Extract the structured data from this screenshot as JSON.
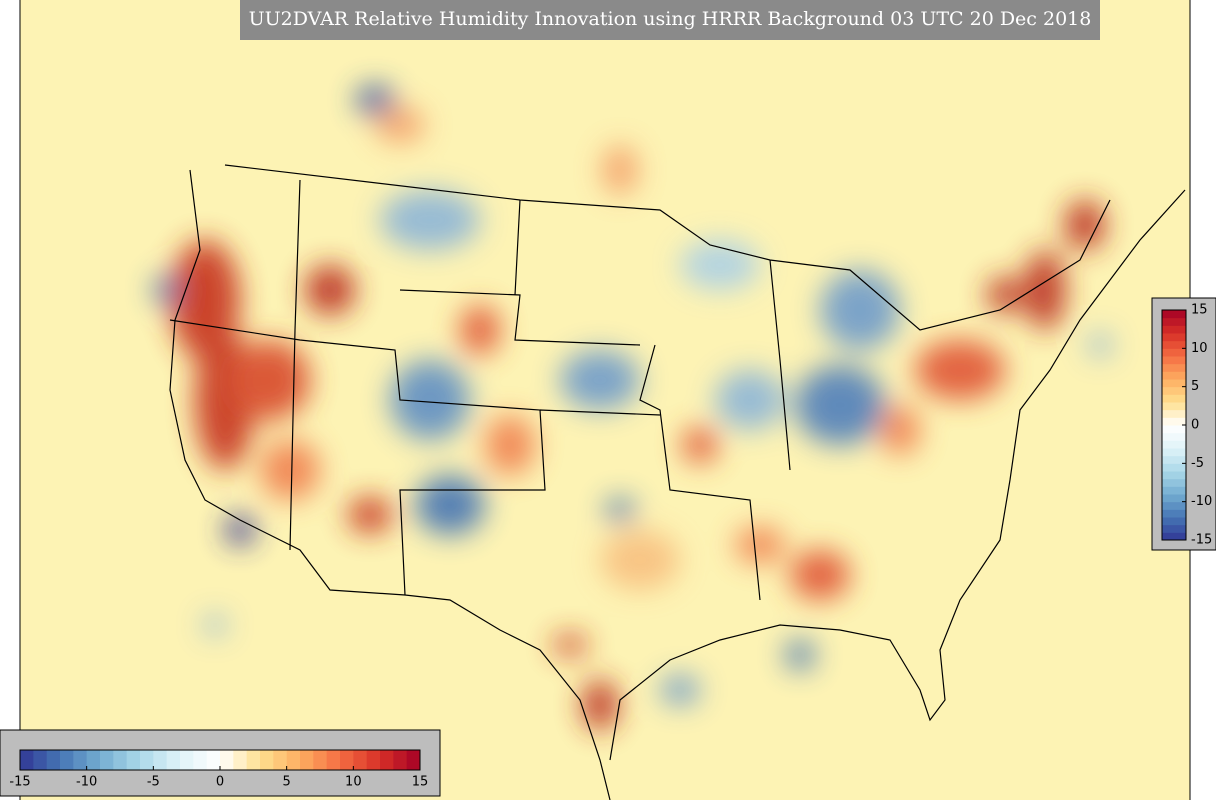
{
  "title": "UU2DVAR Relative Humidity Innovation using HRRR Background 03 UTC 20 Dec 2018",
  "colorbar": {
    "range": [
      -15,
      15
    ],
    "ticks": [
      -15,
      -10,
      -5,
      0,
      5,
      10,
      15
    ],
    "colormap": [
      "#313695",
      "#4575b4",
      "#74add1",
      "#abd9e9",
      "#e0f3f8",
      "#ffffff",
      "#fee090",
      "#fdae61",
      "#f46d43",
      "#d73027",
      "#a50026"
    ]
  }
}
